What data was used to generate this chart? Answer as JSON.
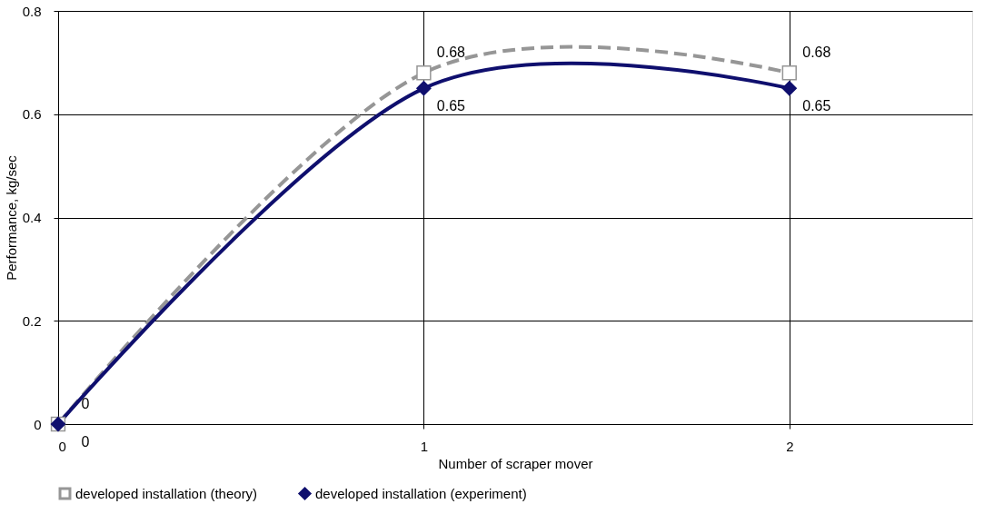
{
  "chart_data": {
    "type": "line",
    "xlabel": "Number of scraper mover",
    "ylabel": "Performance,  kg/sec",
    "x": [
      0,
      1,
      2
    ],
    "series": [
      {
        "name": "developed installation (theory)",
        "color": "#969696",
        "values": [
          0,
          0.68,
          0.68
        ],
        "marker": "square",
        "line_style": "dashed"
      },
      {
        "name": "developed installation (experiment)",
        "color": "#0f0f6e",
        "values": [
          0,
          0.65,
          0.65
        ],
        "marker": "diamond",
        "line_style": "solid"
      }
    ],
    "xlim": [
      0,
      2.5
    ],
    "xticks": [
      0,
      1,
      2
    ],
    "ylim": [
      0,
      0.8
    ],
    "yticks": [
      0,
      0.2,
      0.4,
      0.6,
      0.8
    ],
    "grid": true,
    "legend": "bottom",
    "data_labels": true
  }
}
